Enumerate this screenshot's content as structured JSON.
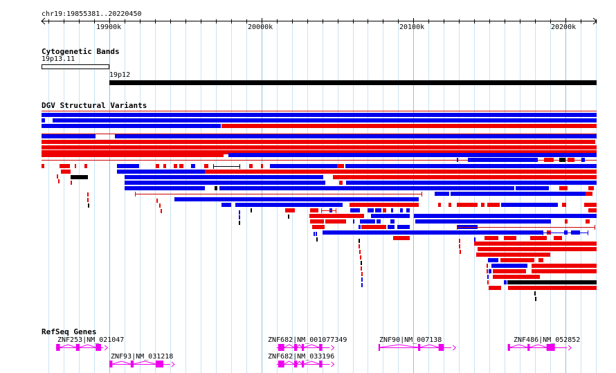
{
  "region": {
    "label": "chr19:19855381..20220450",
    "start": 19855381,
    "end": 20220450
  },
  "ruler": {
    "ticks": [
      {
        "pos": 19900000,
        "label": "19900k"
      },
      {
        "pos": 20000000,
        "label": "20000k"
      },
      {
        "pos": 20100000,
        "label": "20100k"
      },
      {
        "pos": 20200000,
        "label": "20200k"
      }
    ],
    "minor_step": 10000
  },
  "tracks": {
    "cytoband": {
      "title": "Cytogenetic Bands",
      "bands": [
        {
          "name": "19p13.11",
          "start": 19855381,
          "end": 19900000,
          "stain": "gneg"
        },
        {
          "name": "19p12",
          "start": 19900000,
          "end": 20220450,
          "stain": "gvar"
        }
      ]
    },
    "dgv": {
      "title": "DGV Structural Variants",
      "colors": {
        "gain": "#0000ee",
        "loss": "#ee0000",
        "both": "#000000",
        "line": "#cc0000"
      }
    },
    "refseq": {
      "title": "RefSeq Genes",
      "color": "#ee00ee",
      "genes": [
        {
          "label": "ZNF253|NM_021047",
          "start": 19865000,
          "end": 19896000,
          "exons": [
            [
              19865000,
              19867500
            ],
            [
              19878000,
              19880500
            ],
            [
              19891000,
              19894500
            ]
          ]
        },
        {
          "label": "ZNF93|NM_031218",
          "start": 19900000,
          "end": 19940000,
          "exons": [
            [
              19900000,
              19902000
            ],
            [
              19914000,
              19916000
            ],
            [
              19930500,
              19935500
            ]
          ]
        },
        {
          "label": "ZNF682|NM_001077349",
          "start": 20010000,
          "end": 20045000,
          "exons": [
            [
              20011000,
              20015000
            ],
            [
              20021500,
              20023500
            ],
            [
              20026500,
              20028000
            ],
            [
              20038000,
              20040000
            ]
          ]
        },
        {
          "label": "ZNF682|NM_033196",
          "start": 20010000,
          "end": 20045000,
          "exons": [
            [
              20011000,
              20015000
            ],
            [
              20021500,
              20023500
            ],
            [
              20026500,
              20028000
            ],
            [
              20038000,
              20040000
            ]
          ]
        },
        {
          "label": "ZNF90|NM_007138",
          "start": 20077000,
          "end": 20125000,
          "exons": [
            [
              20077000,
              20078000
            ],
            [
              20103000,
              20104500
            ],
            [
              20116500,
              20120000
            ]
          ]
        },
        {
          "label": "ZNF486|NM_052852",
          "start": 20162000,
          "end": 20201000,
          "exons": [
            [
              20162000,
              20163500
            ],
            [
              20175000,
              20176500
            ],
            [
              20187500,
              20193000
            ]
          ]
        }
      ]
    }
  }
}
